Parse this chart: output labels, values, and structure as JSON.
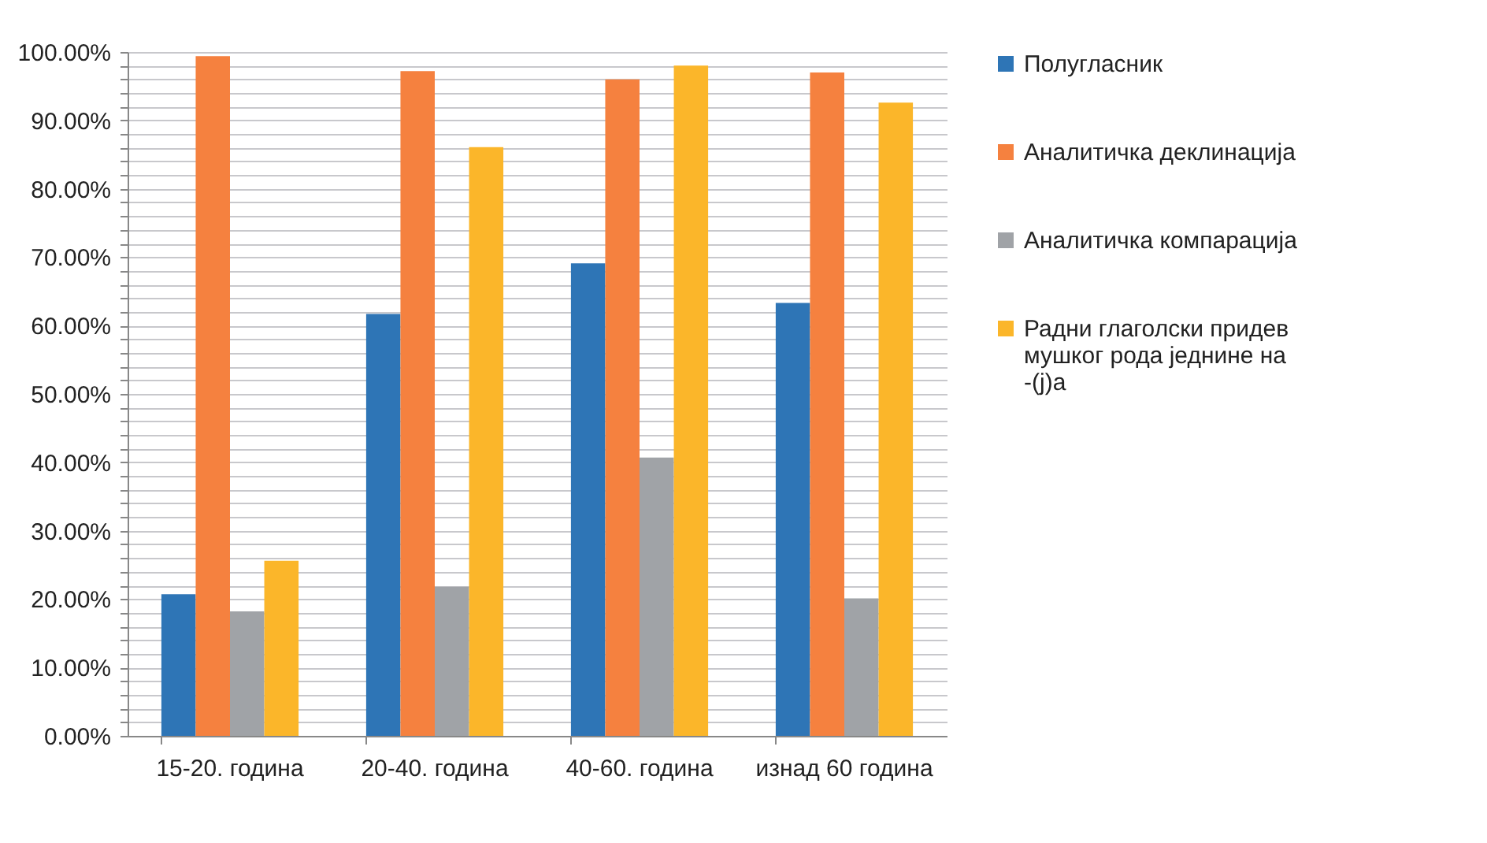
{
  "chart_data": {
    "type": "bar",
    "categories": [
      "15-20. година",
      "20-40. година",
      "40-60. година",
      "изнад 60 година"
    ],
    "series": [
      {
        "name": "Полугласник",
        "color": "#2e75b6",
        "values": [
          20.7,
          61.7,
          69.1,
          63.3
        ]
      },
      {
        "name": "Аналитичка деклинација",
        "color": "#f5813f",
        "values": [
          99.4,
          97.2,
          96.0,
          97.0
        ]
      },
      {
        "name": "Аналитичка компарација",
        "color": "#a0a3a7",
        "values": [
          18.2,
          21.8,
          40.7,
          20.1
        ]
      },
      {
        "name": "Радни глаголски придев мушког рода једнине на -(j)а",
        "color": "#fbb62a",
        "values": [
          25.6,
          86.1,
          98.0,
          92.6
        ]
      }
    ],
    "ylim": [
      0,
      100
    ],
    "yticks": [
      {
        "value": 0,
        "label": "0.00%"
      },
      {
        "value": 2,
        "label": null
      },
      {
        "value": 4,
        "label": null
      },
      {
        "value": 6,
        "label": null
      },
      {
        "value": 8,
        "label": null
      },
      {
        "value": 10,
        "label": "10.00%"
      },
      {
        "value": 12,
        "label": null
      },
      {
        "value": 14,
        "label": null
      },
      {
        "value": 16,
        "label": null
      },
      {
        "value": 18,
        "label": null
      },
      {
        "value": 20,
        "label": "20.00%"
      },
      {
        "value": 22,
        "label": null
      },
      {
        "value": 24,
        "label": null
      },
      {
        "value": 26,
        "label": null
      },
      {
        "value": 28,
        "label": null
      },
      {
        "value": 30,
        "label": "30.00%"
      },
      {
        "value": 32,
        "label": null
      },
      {
        "value": 34,
        "label": null
      },
      {
        "value": 36,
        "label": null
      },
      {
        "value": 38,
        "label": null
      },
      {
        "value": 40,
        "label": "40.00%"
      },
      {
        "value": 42,
        "label": null
      },
      {
        "value": 44,
        "label": null
      },
      {
        "value": 46,
        "label": null
      },
      {
        "value": 48,
        "label": null
      },
      {
        "value": 50,
        "label": "50.00%"
      },
      {
        "value": 52,
        "label": null
      },
      {
        "value": 54,
        "label": null
      },
      {
        "value": 56,
        "label": null
      },
      {
        "value": 58,
        "label": null
      },
      {
        "value": 60,
        "label": "60.00%"
      },
      {
        "value": 62,
        "label": null
      },
      {
        "value": 64,
        "label": null
      },
      {
        "value": 66,
        "label": null
      },
      {
        "value": 68,
        "label": null
      },
      {
        "value": 70,
        "label": "70.00%"
      },
      {
        "value": 72,
        "label": null
      },
      {
        "value": 74,
        "label": null
      },
      {
        "value": 76,
        "label": null
      },
      {
        "value": 78,
        "label": null
      },
      {
        "value": 80,
        "label": "80.00%"
      },
      {
        "value": 82,
        "label": null
      },
      {
        "value": 84,
        "label": null
      },
      {
        "value": 86,
        "label": null
      },
      {
        "value": 88,
        "label": null
      },
      {
        "value": 90,
        "label": "90.00%"
      },
      {
        "value": 92,
        "label": null
      },
      {
        "value": 94,
        "label": null
      },
      {
        "value": 96,
        "label": null
      },
      {
        "value": 98,
        "label": null
      },
      {
        "value": 100,
        "label": "100.00%"
      }
    ],
    "grid": true,
    "legend": "right"
  }
}
